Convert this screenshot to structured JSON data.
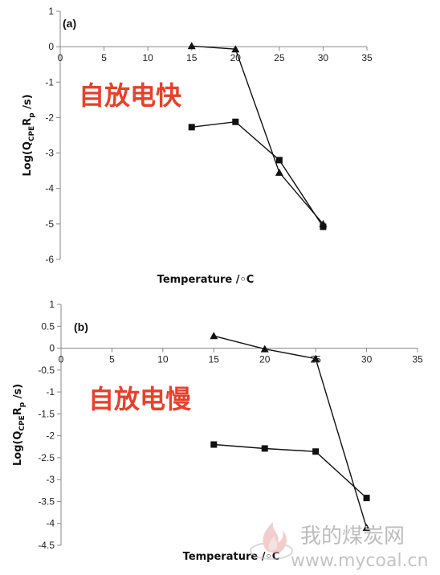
{
  "chart_data": [
    {
      "type": "line",
      "panel_label": "(a)",
      "xlabel": "Temperature /◦C",
      "ylabel_main": "Log(Q",
      "ylabel_sub1": "CPE",
      "ylabel_mid": "R",
      "ylabel_sub2": "p",
      "ylabel_end": " /s)",
      "xlim": [
        0,
        35
      ],
      "ylim": [
        -6,
        1
      ],
      "xticks": [
        "0",
        "5",
        "10",
        "15",
        "20",
        "25",
        "30",
        "35"
      ],
      "yticks": [
        "1",
        "0",
        "-1",
        "-2",
        "-3",
        "-4",
        "-5",
        "-6"
      ],
      "annotation": "自放电快",
      "series": [
        {
          "marker": "triangle",
          "x": [
            15,
            20,
            25,
            30
          ],
          "y": [
            0.02,
            -0.07,
            -3.55,
            -5.0
          ]
        },
        {
          "marker": "square",
          "x": [
            15,
            20,
            25,
            30
          ],
          "y": [
            -2.27,
            -2.12,
            -3.2,
            -5.08
          ]
        }
      ]
    },
    {
      "type": "line",
      "panel_label": "(b)",
      "xlabel": "Temperature /◦C",
      "ylabel_main": "Log(Q",
      "ylabel_sub1": "CPE",
      "ylabel_mid": "R",
      "ylabel_sub2": "p",
      "ylabel_end": " /s)",
      "xlim": [
        0,
        35
      ],
      "ylim": [
        -4.5,
        1
      ],
      "xticks": [
        "0",
        "5",
        "10",
        "15",
        "20",
        "25",
        "30",
        "35"
      ],
      "yticks": [
        "1",
        "0.5",
        "0",
        "-0.5",
        "-1",
        "-1.5",
        "-2",
        "-2.5",
        "-3",
        "-3.5",
        "-4",
        "-4.5"
      ],
      "annotation": "自放电慢",
      "series": [
        {
          "marker": "triangle",
          "x": [
            15,
            20,
            25,
            30
          ],
          "y": [
            0.28,
            -0.02,
            -0.24,
            -4.1
          ]
        },
        {
          "marker": "square",
          "x": [
            15,
            20,
            25,
            30
          ],
          "y": [
            -2.2,
            -2.29,
            -2.36,
            -3.42
          ]
        }
      ]
    }
  ],
  "watermark": {
    "text": "我的煤炭网",
    "url": "www.mycoal.cn"
  }
}
